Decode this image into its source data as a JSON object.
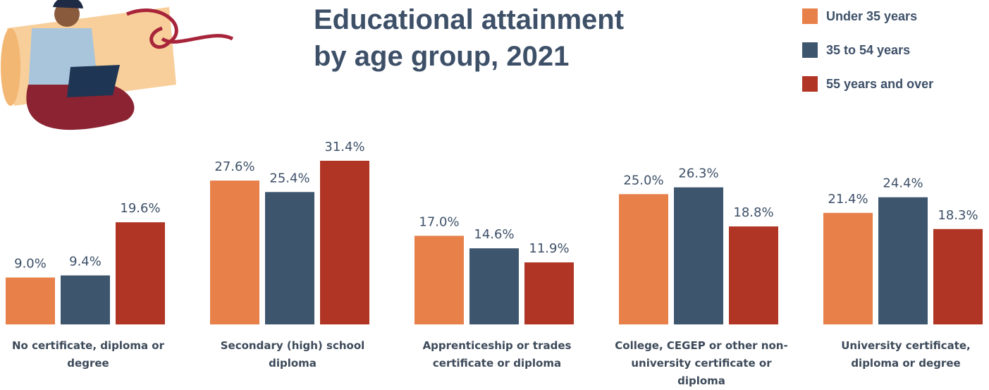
{
  "chart_data": {
    "type": "bar",
    "title": "Educational attainment by age group, 2021",
    "categories": [
      "No certificate, diploma or degree",
      "Secondary (high) school diploma",
      "Apprenticeship or trades certificate or diploma",
      "College, CEGEP or other non-university certificate or diploma",
      "University certificate, diploma or degree"
    ],
    "series": [
      {
        "name": "Under 35 years",
        "color": "#e8804a",
        "values": [
          9.0,
          27.6,
          17.0,
          25.0,
          21.4
        ],
        "value_labels": [
          "9.0%",
          "27.6%",
          "17.0%",
          "25.0%",
          "21.4%"
        ]
      },
      {
        "name": "35 to 54 years",
        "color": "#3d566e",
        "values": [
          9.4,
          25.4,
          14.6,
          26.3,
          24.4
        ],
        "value_labels": [
          "9.4%",
          "25.4%",
          "14.6%",
          "26.3%",
          "24.4%"
        ]
      },
      {
        "name": "55 years and over",
        "color": "#b03524",
        "values": [
          19.6,
          31.4,
          11.9,
          18.8,
          18.3
        ],
        "value_labels": [
          "19.6%",
          "31.4%",
          "11.9%",
          "18.8%",
          "18.3%"
        ]
      }
    ]
  }
}
